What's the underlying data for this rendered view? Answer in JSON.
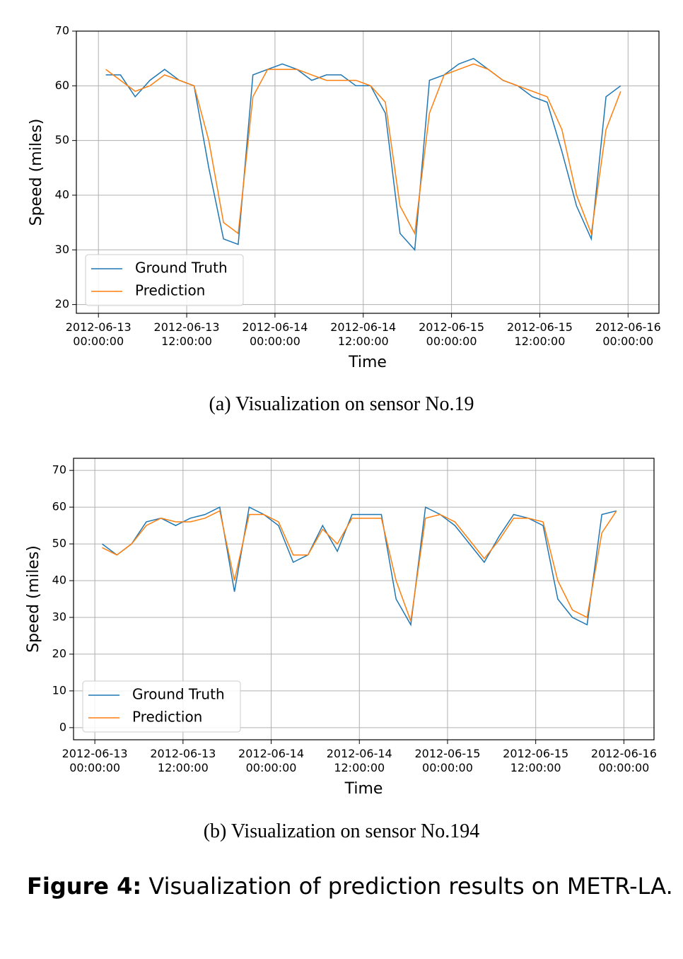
{
  "chart_data": [
    {
      "type": "line",
      "caption": "(a)  Visualization on sensor No.19",
      "xlabel": "Time",
      "ylabel": "Speed (miles)",
      "x": [
        "2012-06-13 01:00:00",
        "2012-06-13 03:00:00",
        "2012-06-13 05:00:00",
        "2012-06-13 07:00:00",
        "2012-06-13 09:00:00",
        "2012-06-13 11:00:00",
        "2012-06-13 13:00:00",
        "2012-06-13 15:00:00",
        "2012-06-13 17:00:00",
        "2012-06-13 19:00:00",
        "2012-06-13 21:00:00",
        "2012-06-13 23:00:00",
        "2012-06-14 01:00:00",
        "2012-06-14 03:00:00",
        "2012-06-14 05:00:00",
        "2012-06-14 07:00:00",
        "2012-06-14 09:00:00",
        "2012-06-14 11:00:00",
        "2012-06-14 13:00:00",
        "2012-06-14 15:00:00",
        "2012-06-14 17:00:00",
        "2012-06-14 19:00:00",
        "2012-06-14 21:00:00",
        "2012-06-14 23:00:00",
        "2012-06-15 01:00:00",
        "2012-06-15 03:00:00",
        "2012-06-15 05:00:00",
        "2012-06-15 07:00:00",
        "2012-06-15 09:00:00",
        "2012-06-15 11:00:00",
        "2012-06-15 13:00:00",
        "2012-06-15 15:00:00",
        "2012-06-15 17:00:00",
        "2012-06-15 19:00:00",
        "2012-06-15 21:00:00",
        "2012-06-15 23:00:00"
      ],
      "series": [
        {
          "name": "Ground Truth",
          "color": "#1f77b4",
          "values": [
            62,
            62,
            58,
            61,
            63,
            61,
            60,
            45,
            32,
            31,
            62,
            63,
            64,
            63,
            61,
            62,
            62,
            60,
            60,
            55,
            33,
            30,
            61,
            62,
            64,
            65,
            63,
            61,
            60,
            58,
            57,
            48,
            38,
            32,
            58,
            60
          ]
        },
        {
          "name": "Prediction",
          "color": "#ff7f0e",
          "values": [
            63,
            61,
            59,
            60,
            62,
            61,
            60,
            50,
            35,
            33,
            58,
            63,
            63,
            63,
            62,
            61,
            61,
            61,
            60,
            57,
            38,
            33,
            55,
            62,
            63,
            64,
            63,
            61,
            60,
            59,
            58,
            52,
            40,
            33,
            52,
            59
          ]
        }
      ],
      "xlim": [
        "2012-06-12 21:00:00",
        "2012-06-16 04:12:00"
      ],
      "ylim": [
        18.4,
        70
      ],
      "yticks": [
        20,
        30,
        40,
        50,
        60,
        70
      ],
      "xticks": [
        {
          "value": "2012-06-13 00:00:00",
          "label": "2012-06-13\n00:00:00"
        },
        {
          "value": "2012-06-13 12:00:00",
          "label": "2012-06-13\n12:00:00"
        },
        {
          "value": "2012-06-14 00:00:00",
          "label": "2012-06-14\n00:00:00"
        },
        {
          "value": "2012-06-14 12:00:00",
          "label": "2012-06-14\n12:00:00"
        },
        {
          "value": "2012-06-15 00:00:00",
          "label": "2012-06-15\n00:00:00"
        },
        {
          "value": "2012-06-15 12:00:00",
          "label": "2012-06-15\n12:00:00"
        },
        {
          "value": "2012-06-16 00:00:00",
          "label": "2012-06-16\n00:00:00"
        }
      ],
      "grid": true,
      "legend": "lower left"
    },
    {
      "type": "line",
      "caption": "(b)  Visualization on sensor No.194",
      "xlabel": "Time",
      "ylabel": "Speed (miles)",
      "x": [
        "2012-06-13 01:00:00",
        "2012-06-13 03:00:00",
        "2012-06-13 05:00:00",
        "2012-06-13 07:00:00",
        "2012-06-13 09:00:00",
        "2012-06-13 11:00:00",
        "2012-06-13 13:00:00",
        "2012-06-13 15:00:00",
        "2012-06-13 17:00:00",
        "2012-06-13 19:00:00",
        "2012-06-13 21:00:00",
        "2012-06-13 23:00:00",
        "2012-06-14 01:00:00",
        "2012-06-14 03:00:00",
        "2012-06-14 05:00:00",
        "2012-06-14 07:00:00",
        "2012-06-14 09:00:00",
        "2012-06-14 11:00:00",
        "2012-06-14 13:00:00",
        "2012-06-14 15:00:00",
        "2012-06-14 17:00:00",
        "2012-06-14 19:00:00",
        "2012-06-14 21:00:00",
        "2012-06-14 23:00:00",
        "2012-06-15 01:00:00",
        "2012-06-15 03:00:00",
        "2012-06-15 05:00:00",
        "2012-06-15 07:00:00",
        "2012-06-15 09:00:00",
        "2012-06-15 11:00:00",
        "2012-06-15 13:00:00",
        "2012-06-15 15:00:00",
        "2012-06-15 17:00:00",
        "2012-06-15 19:00:00",
        "2012-06-15 21:00:00",
        "2012-06-15 23:00:00"
      ],
      "series": [
        {
          "name": "Ground Truth",
          "color": "#1f77b4",
          "values": [
            50,
            47,
            50,
            56,
            57,
            55,
            57,
            58,
            60,
            37,
            60,
            58,
            55,
            45,
            47,
            55,
            48,
            58,
            58,
            58,
            35,
            28,
            60,
            58,
            55,
            50,
            45,
            52,
            58,
            57,
            55,
            35,
            30,
            28,
            58,
            59
          ]
        },
        {
          "name": "Prediction",
          "color": "#ff7f0e",
          "values": [
            49,
            47,
            50,
            55,
            57,
            56,
            56,
            57,
            59,
            40,
            58,
            58,
            56,
            47,
            47,
            54,
            50,
            57,
            57,
            57,
            40,
            29,
            57,
            58,
            56,
            51,
            46,
            51,
            57,
            57,
            56,
            40,
            32,
            30,
            53,
            59
          ]
        }
      ],
      "xlim": [
        "2012-06-12 21:06:00",
        "2012-06-16 04:06:00"
      ],
      "ylim": [
        -3.3,
        73.3
      ],
      "yticks": [
        0,
        10,
        20,
        30,
        40,
        50,
        60,
        70
      ],
      "xticks": [
        {
          "value": "2012-06-13 00:00:00",
          "label": "2012-06-13\n00:00:00"
        },
        {
          "value": "2012-06-13 12:00:00",
          "label": "2012-06-13\n12:00:00"
        },
        {
          "value": "2012-06-14 00:00:00",
          "label": "2012-06-14\n00:00:00"
        },
        {
          "value": "2012-06-14 12:00:00",
          "label": "2012-06-14\n12:00:00"
        },
        {
          "value": "2012-06-15 00:00:00",
          "label": "2012-06-15\n00:00:00"
        },
        {
          "value": "2012-06-15 12:00:00",
          "label": "2012-06-15\n12:00:00"
        },
        {
          "value": "2012-06-16 00:00:00",
          "label": "2012-06-16\n00:00:00"
        }
      ],
      "grid": true,
      "legend": "lower left"
    }
  ],
  "figure_caption": {
    "label": "Figure 4:",
    "text": "Visualization of prediction results on METR-LA."
  }
}
